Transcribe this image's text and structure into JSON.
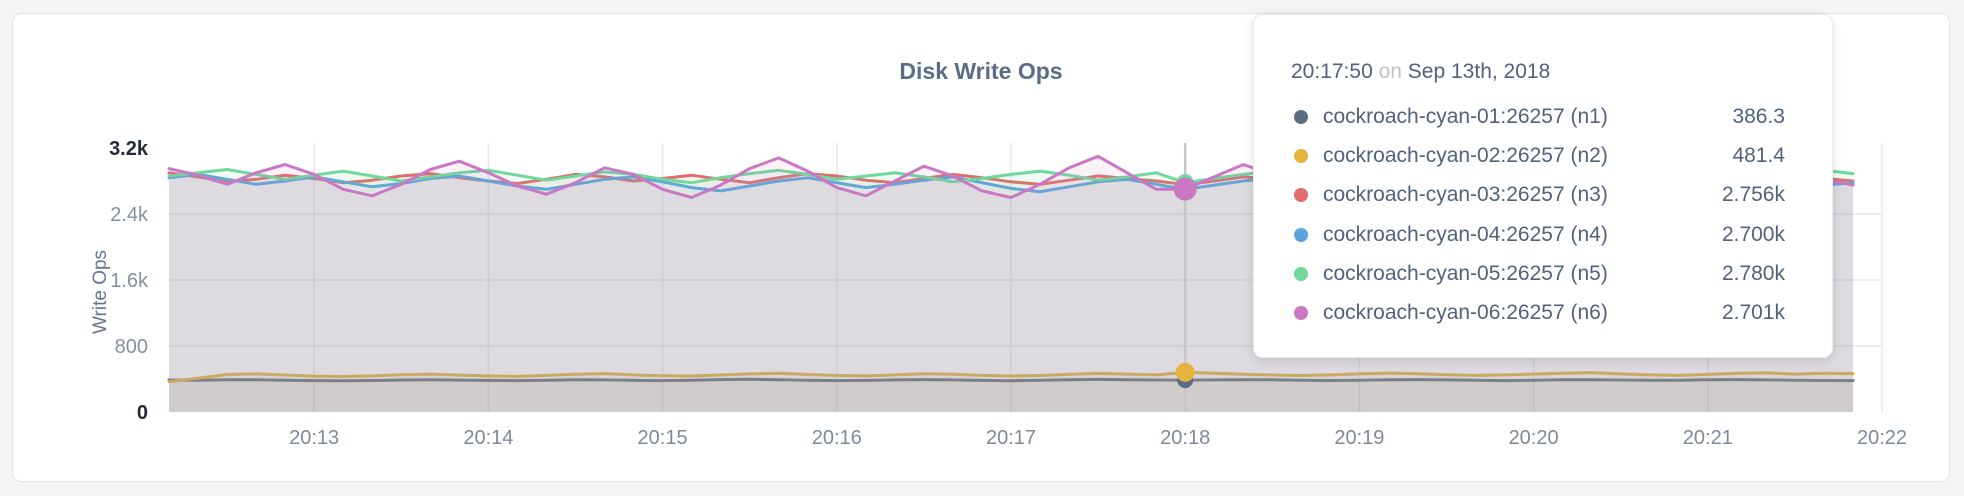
{
  "page": {
    "background": "#f4f4f6"
  },
  "panel": {
    "background": "#ffffff",
    "border": "#e3e3e6"
  },
  "chart_data": {
    "type": "line",
    "title": "Disk Write Ops",
    "ylabel": "Write Ops",
    "xlabel": "",
    "ylim": [
      0,
      3200
    ],
    "grid": true,
    "legend_position": "tooltip",
    "x_tick_labels": [
      "20:13",
      "20:14",
      "20:15",
      "20:16",
      "20:17",
      "20:18",
      "20:19",
      "20:20",
      "20:21",
      "20:22"
    ],
    "y_ticks": [
      {
        "label": "0",
        "value": 0,
        "emphasis": true
      },
      {
        "label": "800",
        "value": 800,
        "emphasis": false
      },
      {
        "label": "1.6k",
        "value": 1600,
        "emphasis": false
      },
      {
        "label": "2.4k",
        "value": 2400,
        "emphasis": false
      },
      {
        "label": "3.2k",
        "value": 3200,
        "emphasis": true
      }
    ],
    "hover_index": 35,
    "tooltip": {
      "time": "20:17:50",
      "conj": "on",
      "date": "Sep 13th, 2018"
    },
    "colors": {
      "grid": "#e8e8eb",
      "hover_line": "#c6c6c9",
      "tick_text": "#8390a4",
      "tick_text_emphasis": "#232b3a",
      "x_tick_text": "#7e899c"
    },
    "fill_opacity": 0.1,
    "series": [
      {
        "name": "cockroach-cyan-01:26257 (n1)",
        "color": "#5c6d82",
        "tooltip_value": "386.3",
        "values": [
          388,
          385,
          392,
          391,
          386,
          381,
          378,
          382,
          388,
          392,
          387,
          383,
          380,
          385,
          391,
          389,
          384,
          381,
          386,
          393,
          396,
          390,
          384,
          380,
          383,
          389,
          393,
          389,
          383,
          379,
          384,
          391,
          395,
          392,
          388,
          386.3,
          389,
          392,
          390,
          386,
          382,
          385,
          390,
          393,
          389,
          384,
          381,
          385,
          390,
          392,
          388,
          384,
          386,
          390,
          393,
          389,
          385,
          382,
          380
        ]
      },
      {
        "name": "cockroach-cyan-02:26257 (n2)",
        "color": "#e5b43f",
        "tooltip_value": "481.4",
        "values": [
          370,
          408,
          455,
          462,
          448,
          435,
          430,
          438,
          452,
          460,
          447,
          438,
          432,
          444,
          458,
          465,
          450,
          440,
          436,
          448,
          462,
          470,
          455,
          443,
          438,
          450,
          464,
          458,
          444,
          436,
          442,
          456,
          468,
          460,
          450,
          481.4,
          470,
          458,
          448,
          442,
          450,
          462,
          472,
          464,
          452,
          444,
          450,
          460,
          470,
          478,
          462,
          450,
          444,
          456,
          468,
          475,
          460,
          470,
          465
        ]
      },
      {
        "name": "cockroach-cyan-03:26257 (n3)",
        "color": "#e06c6c",
        "tooltip_value": "2.756k",
        "values": [
          2900,
          2850,
          2790,
          2820,
          2870,
          2830,
          2780,
          2810,
          2860,
          2890,
          2840,
          2800,
          2770,
          2820,
          2880,
          2850,
          2800,
          2830,
          2870,
          2820,
          2780,
          2840,
          2890,
          2860,
          2810,
          2780,
          2830,
          2880,
          2840,
          2790,
          2760,
          2810,
          2860,
          2830,
          2800,
          2756,
          2800,
          2850,
          2820,
          2780,
          2810,
          2860,
          2890,
          2830,
          2790,
          2820,
          2870,
          2840,
          2800,
          2770,
          2820,
          2860,
          2830,
          2790,
          2810,
          2850,
          2880,
          2830,
          2800
        ]
      },
      {
        "name": "cockroach-cyan-04:26257 (n4)",
        "color": "#5ea4dc",
        "tooltip_value": "2.700k",
        "values": [
          2840,
          2880,
          2820,
          2760,
          2800,
          2850,
          2790,
          2730,
          2770,
          2830,
          2860,
          2800,
          2740,
          2700,
          2760,
          2820,
          2850,
          2790,
          2720,
          2680,
          2740,
          2800,
          2840,
          2780,
          2720,
          2760,
          2810,
          2850,
          2780,
          2710,
          2670,
          2730,
          2790,
          2820,
          2760,
          2700,
          2750,
          2800,
          2830,
          2770,
          2710,
          2680,
          2740,
          2790,
          2820,
          2760,
          2700,
          2730,
          2780,
          2810,
          2750,
          2690,
          2720,
          2770,
          2800,
          2760,
          2710,
          2750,
          2780
        ]
      },
      {
        "name": "cockroach-cyan-05:26257 (n5)",
        "color": "#6fd89b",
        "tooltip_value": "2.780k",
        "values": [
          2860,
          2900,
          2940,
          2880,
          2820,
          2870,
          2920,
          2860,
          2800,
          2850,
          2900,
          2930,
          2870,
          2810,
          2860,
          2910,
          2880,
          2820,
          2780,
          2840,
          2890,
          2930,
          2880,
          2820,
          2860,
          2900,
          2850,
          2790,
          2830,
          2880,
          2920,
          2870,
          2810,
          2850,
          2900,
          2780,
          2830,
          2880,
          2920,
          2870,
          2820,
          2860,
          2910,
          2940,
          2880,
          2830,
          2870,
          2910,
          2860,
          2800,
          2850,
          2890,
          2930,
          2870,
          2820,
          2860,
          2900,
          2930,
          2890
        ]
      },
      {
        "name": "cockroach-cyan-06:26257 (n6)",
        "color": "#cb78c4",
        "tooltip_value": "2.701k",
        "values": [
          2950,
          2870,
          2760,
          2900,
          3000,
          2880,
          2700,
          2620,
          2760,
          2940,
          3040,
          2900,
          2740,
          2640,
          2780,
          2960,
          2880,
          2700,
          2600,
          2750,
          2950,
          3080,
          2920,
          2720,
          2620,
          2800,
          2980,
          2860,
          2680,
          2600,
          2760,
          2960,
          3100,
          2900,
          2700,
          2701,
          2850,
          3000,
          2880,
          2700,
          2620,
          2780,
          2960,
          2900,
          2720,
          2640,
          2800,
          2980,
          3060,
          2880,
          2700,
          2640,
          2820,
          3000,
          3090,
          2900,
          2720,
          2820,
          2750
        ]
      }
    ]
  }
}
